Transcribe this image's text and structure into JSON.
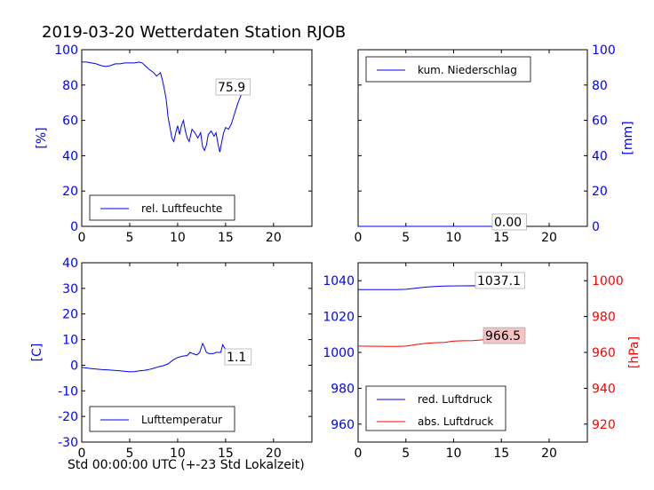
{
  "page_title": "2019-03-20 Wetterdaten Station RJOB",
  "xlabel": "Std 00:00:00 UTC (+-23 Std Lokalzeit)",
  "colors": {
    "blue": "#0000ff",
    "red": "#ff0000",
    "black": "#000000",
    "annot_bg_red": "#f4c3c3"
  },
  "chart_data": [
    {
      "type": "line",
      "panel": "top-left",
      "ylabel": "[%]",
      "xlim": [
        0,
        24
      ],
      "ylim": [
        0,
        100
      ],
      "xticks": [
        0,
        5,
        10,
        15,
        20
      ],
      "yticks": [
        0,
        20,
        40,
        60,
        80,
        100
      ],
      "legend_placement": "lower-center",
      "annotation": "75.9",
      "series": [
        {
          "name": "rel. Luftfeuchte",
          "color": "#0000ff",
          "points": [
            [
              0,
              93
            ],
            [
              0.5,
              93
            ],
            [
              1,
              92.5
            ],
            [
              1.5,
              92
            ],
            [
              2,
              91
            ],
            [
              2.5,
              90.5
            ],
            [
              3,
              91
            ],
            [
              3.5,
              92
            ],
            [
              4,
              92
            ],
            [
              4.5,
              92.5
            ],
            [
              5,
              92.5
            ],
            [
              5.5,
              92.5
            ],
            [
              6,
              93
            ],
            [
              6.3,
              92.5
            ],
            [
              6.6,
              91
            ],
            [
              7,
              89
            ],
            [
              7.5,
              87
            ],
            [
              7.8,
              85
            ],
            [
              8,
              86
            ],
            [
              8.2,
              87
            ],
            [
              8.4,
              83
            ],
            [
              8.6,
              78
            ],
            [
              8.8,
              72
            ],
            [
              9,
              62
            ],
            [
              9.2,
              56
            ],
            [
              9.4,
              50
            ],
            [
              9.6,
              48
            ],
            [
              9.8,
              53
            ],
            [
              10,
              57
            ],
            [
              10.2,
              52
            ],
            [
              10.4,
              57
            ],
            [
              10.6,
              60
            ],
            [
              10.8,
              54
            ],
            [
              11,
              50
            ],
            [
              11.2,
              48
            ],
            [
              11.5,
              55
            ],
            [
              11.8,
              53
            ],
            [
              12.1,
              50
            ],
            [
              12.4,
              53
            ],
            [
              12.6,
              45
            ],
            [
              12.8,
              43
            ],
            [
              13,
              46
            ],
            [
              13.2,
              52
            ],
            [
              13.5,
              54
            ],
            [
              13.8,
              51
            ],
            [
              14,
              53
            ],
            [
              14.2,
              47
            ],
            [
              14.4,
              42
            ],
            [
              14.6,
              48
            ],
            [
              14.8,
              53
            ],
            [
              15,
              56
            ],
            [
              15.3,
              55
            ],
            [
              15.6,
              58
            ],
            [
              16,
              65
            ],
            [
              16.3,
              70
            ],
            [
              16.6,
              74
            ],
            [
              16.9,
              77
            ],
            [
              17.2,
              75.9
            ]
          ]
        }
      ]
    },
    {
      "type": "line",
      "panel": "top-right",
      "ylabel": "[mm]",
      "xlim": [
        0,
        24
      ],
      "ylim": [
        0,
        100
      ],
      "xticks": [
        0,
        5,
        10,
        15,
        20
      ],
      "yticks": [
        0,
        20,
        40,
        60,
        80,
        100
      ],
      "legend_placement": "upper-left",
      "annotation": "0.00",
      "series": [
        {
          "name": "kum. Niederschlag",
          "color": "#0000ff",
          "points": [
            [
              0,
              0
            ],
            [
              17.2,
              0
            ]
          ]
        }
      ]
    },
    {
      "type": "line",
      "panel": "bottom-left",
      "ylabel": "[C]",
      "xlim": [
        0,
        24
      ],
      "ylim": [
        -30,
        40
      ],
      "xticks": [
        0,
        5,
        10,
        15,
        20
      ],
      "yticks": [
        -30,
        -20,
        -10,
        0,
        10,
        20,
        30,
        40
      ],
      "legend_placement": "lower-center",
      "annotation": "1.1",
      "series": [
        {
          "name": "Lufttemperatur",
          "color": "#0000ff",
          "points": [
            [
              0,
              -0.8
            ],
            [
              1,
              -1.3
            ],
            [
              2,
              -1.7
            ],
            [
              3,
              -1.9
            ],
            [
              4,
              -2.2
            ],
            [
              5,
              -2.6
            ],
            [
              5.5,
              -2.5
            ],
            [
              6,
              -2.2
            ],
            [
              6.5,
              -2
            ],
            [
              7,
              -1.7
            ],
            [
              7.5,
              -1.2
            ],
            [
              8,
              -0.6
            ],
            [
              8.5,
              -0.2
            ],
            [
              9,
              0.5
            ],
            [
              9.5,
              2
            ],
            [
              10,
              3
            ],
            [
              10.5,
              3.5
            ],
            [
              11,
              3.8
            ],
            [
              11.3,
              5
            ],
            [
              11.6,
              4.5
            ],
            [
              12,
              4
            ],
            [
              12.3,
              5
            ],
            [
              12.6,
              8.5
            ],
            [
              12.8,
              7
            ],
            [
              13,
              5
            ],
            [
              13.3,
              4.5
            ],
            [
              13.7,
              4.5
            ],
            [
              14,
              5
            ],
            [
              14.5,
              5
            ],
            [
              14.7,
              8
            ],
            [
              15,
              6
            ],
            [
              15.3,
              5
            ],
            [
              15.6,
              4
            ],
            [
              16,
              3
            ],
            [
              16.5,
              2
            ],
            [
              17,
              1.1
            ]
          ]
        }
      ]
    },
    {
      "type": "line",
      "panel": "bottom-right",
      "ylabel": "[hPa]",
      "xlim": [
        0,
        24
      ],
      "ylim_left": [
        950,
        1050
      ],
      "ylim_right": [
        910,
        1010
      ],
      "xticks": [
        0,
        5,
        10,
        15,
        20
      ],
      "yticks_left": [
        960,
        980,
        1000,
        1020,
        1040
      ],
      "yticks_right": [
        920,
        940,
        960,
        980,
        1000
      ],
      "legend_placement": "lower-left",
      "annotations": [
        "1037.1",
        "966.5"
      ],
      "series": [
        {
          "name": "red. Luftdruck",
          "color": "#0000ff",
          "axis": "left",
          "points": [
            [
              0,
              1035
            ],
            [
              2,
              1035
            ],
            [
              4,
              1035
            ],
            [
              5,
              1035.2
            ],
            [
              6,
              1035.8
            ],
            [
              7,
              1036.4
            ],
            [
              8,
              1036.8
            ],
            [
              9,
              1037
            ],
            [
              10,
              1037.1
            ],
            [
              12,
              1037.2
            ],
            [
              14,
              1037
            ],
            [
              15,
              1037.2
            ],
            [
              16,
              1037
            ],
            [
              17.2,
              1037.1
            ]
          ]
        },
        {
          "name": "abs. Luftdruck",
          "color": "#ff0000",
          "axis": "right",
          "points": [
            [
              0,
              963.5
            ],
            [
              2,
              963.4
            ],
            [
              4,
              963.3
            ],
            [
              5,
              963.5
            ],
            [
              6,
              964.3
            ],
            [
              7,
              965
            ],
            [
              8,
              965.4
            ],
            [
              9,
              965.6
            ],
            [
              10,
              966.3
            ],
            [
              11,
              966.5
            ],
            [
              12,
              966.6
            ],
            [
              13,
              967
            ],
            [
              13.5,
              967.5
            ],
            [
              14,
              966.5
            ],
            [
              14.5,
              966.2
            ],
            [
              15,
              966.8
            ],
            [
              16,
              967
            ],
            [
              17.2,
              966.5
            ]
          ]
        }
      ]
    }
  ]
}
